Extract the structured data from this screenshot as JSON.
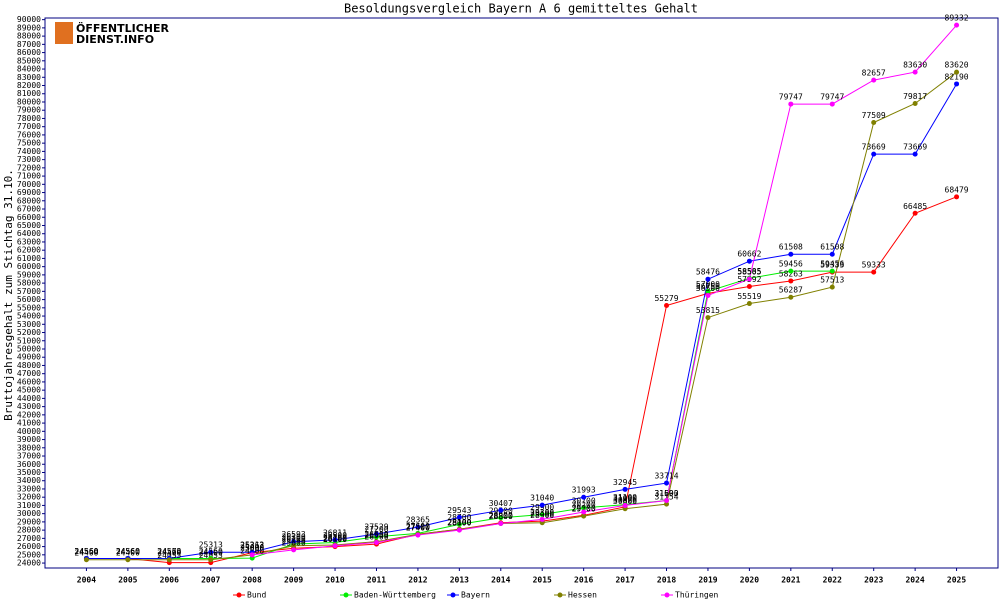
{
  "chart_data": {
    "type": "line",
    "title": "Besoldungsvergleich Bayern A 6 gemitteltes Gehalt",
    "y_label": "Bruttojahresgehalt zum Stichtag 31.10.",
    "logo": [
      "ÖFFENTLICHER",
      "DIENST.INFO"
    ],
    "x": [
      2004,
      2005,
      2006,
      2007,
      2008,
      2009,
      2010,
      2011,
      2012,
      2013,
      2014,
      2015,
      2016,
      2017,
      2018,
      2019,
      2020,
      2021,
      2022,
      2023,
      2024,
      2025
    ],
    "xlim": [
      2003,
      2026
    ],
    "xticks": [
      2004,
      2005,
      2006,
      2007,
      2008,
      2009,
      2010,
      2011,
      2012,
      2013,
      2014,
      2015,
      2016,
      2017,
      2018,
      2019,
      2020,
      2021,
      2022,
      2023,
      2024,
      2025
    ],
    "ylim": [
      23400,
      90200
    ],
    "yticks": [
      24000,
      25000,
      26000,
      27000,
      28000,
      29000,
      30000,
      31000,
      32000,
      33000,
      34000,
      35000,
      36000,
      37000,
      38000,
      39000,
      40000,
      41000,
      42000,
      43000,
      44000,
      45000,
      46000,
      47000,
      48000,
      49000,
      50000,
      51000,
      52000,
      53000,
      54000,
      55000,
      56000,
      57000,
      58000,
      59000,
      60000,
      61000,
      62000,
      63000,
      64000,
      65000,
      66000,
      67000,
      68000,
      69000,
      70000,
      71000,
      72000,
      73000,
      74000,
      75000,
      76000,
      77000,
      78000,
      79000,
      80000,
      81000,
      82000,
      83000,
      84000,
      85000,
      86000,
      87000,
      88000,
      89000,
      90000
    ],
    "grid": false,
    "legend": "bottom",
    "series": [
      {
        "name": "Bund",
        "color": "#ff0000",
        "values": [
          24560,
          24560,
          24053,
          24053,
          25262,
          25800,
          26000,
          26300,
          27500,
          28100,
          28900,
          29100,
          29800,
          30826,
          55279,
          56750,
          57592,
          58263,
          59333,
          59333,
          66485,
          68479
        ]
      },
      {
        "name": "Baden-Württemberg",
        "color": "#00ee00",
        "values": [
          24560,
          24560,
          24560,
          24560,
          24600,
          26300,
          26500,
          27200,
          27600,
          28700,
          29500,
          29900,
          30700,
          31100,
          31593,
          57000,
          58585,
          59456,
          59456,
          null,
          null,
          null
        ]
      },
      {
        "name": "Bayern",
        "color": "#0000ff",
        "values": [
          24560,
          24560,
          24573,
          25313,
          25313,
          26593,
          26811,
          27529,
          28365,
          29543,
          30407,
          31040,
          31993,
          32945,
          33714,
          58476,
          60662,
          61508,
          61508,
          73669,
          73669,
          82190
        ]
      },
      {
        "name": "Hessen",
        "color": "#808000",
        "values": [
          24400,
          24400,
          24400,
          24400,
          25000,
          26100,
          26200,
          26600,
          27500,
          28100,
          28800,
          28900,
          29700,
          30600,
          31154,
          53815,
          55519,
          56287,
          57513,
          77509,
          79817,
          83620
        ]
      },
      {
        "name": "Thüringen",
        "color": "#ff00ff",
        "values": [
          null,
          null,
          null,
          null,
          25000,
          25600,
          26100,
          26500,
          27400,
          28000,
          28800,
          29300,
          30200,
          31000,
          31600,
          56500,
          58505,
          79747,
          79747,
          82657,
          83630,
          89332
        ]
      }
    ]
  }
}
